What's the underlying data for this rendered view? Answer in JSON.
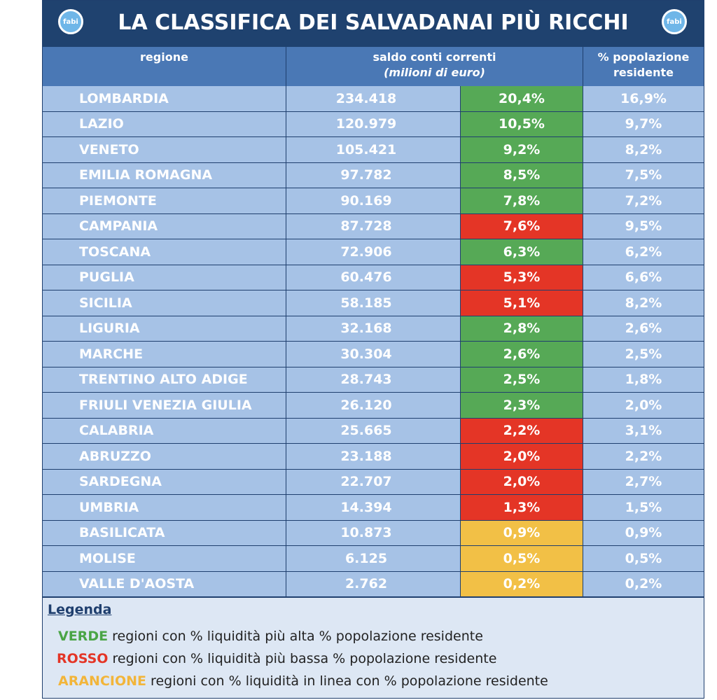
{
  "header": {
    "title": "LA CLASSIFICA DEI SALVADANAI PIÙ RICCHI",
    "logo_text": "fabi"
  },
  "table": {
    "columns": {
      "region": "regione",
      "saldo": "saldo conti correnti",
      "saldo_unit": "(milioni di euro)",
      "pop": "% popolazione residente"
    },
    "rows": [
      {
        "region": "LOMBARDIA",
        "saldo": "234.418",
        "share": "20,4%",
        "pop": "16,9%",
        "color": "#56a956"
      },
      {
        "region": "LAZIO",
        "saldo": "120.979",
        "share": "10,5%",
        "pop": "9,7%",
        "color": "#56a956"
      },
      {
        "region": "VENETO",
        "saldo": "105.421",
        "share": "9,2%",
        "pop": "8,2%",
        "color": "#56a956"
      },
      {
        "region": "EMILIA ROMAGNA",
        "saldo": "97.782",
        "share": "8,5%",
        "pop": "7,5%",
        "color": "#56a956"
      },
      {
        "region": "PIEMONTE",
        "saldo": "90.169",
        "share": "7,8%",
        "pop": "7,2%",
        "color": "#56a956"
      },
      {
        "region": "CAMPANIA",
        "saldo": "87.728",
        "share": "7,6%",
        "pop": "9,5%",
        "color": "#e43526"
      },
      {
        "region": "TOSCANA",
        "saldo": "72.906",
        "share": "6,3%",
        "pop": "6,2%",
        "color": "#56a956"
      },
      {
        "region": "PUGLIA",
        "saldo": "60.476",
        "share": "5,3%",
        "pop": "6,6%",
        "color": "#e43526"
      },
      {
        "region": "SICILIA",
        "saldo": "58.185",
        "share": "5,1%",
        "pop": "8,2%",
        "color": "#e43526"
      },
      {
        "region": "LIGURIA",
        "saldo": "32.168",
        "share": "2,8%",
        "pop": "2,6%",
        "color": "#56a956"
      },
      {
        "region": "MARCHE",
        "saldo": "30.304",
        "share": "2,6%",
        "pop": "2,5%",
        "color": "#56a956"
      },
      {
        "region": "TRENTINO ALTO ADIGE",
        "saldo": "28.743",
        "share": "2,5%",
        "pop": "1,8%",
        "color": "#56a956"
      },
      {
        "region": "FRIULI VENEZIA GIULIA",
        "saldo": "26.120",
        "share": "2,3%",
        "pop": "2,0%",
        "color": "#56a956"
      },
      {
        "region": "CALABRIA",
        "saldo": "25.665",
        "share": "2,2%",
        "pop": "3,1%",
        "color": "#e43526"
      },
      {
        "region": "ABRUZZO",
        "saldo": "23.188",
        "share": "2,0%",
        "pop": "2,2%",
        "color": "#e43526"
      },
      {
        "region": "SARDEGNA",
        "saldo": "22.707",
        "share": "2,0%",
        "pop": "2,7%",
        "color": "#e43526"
      },
      {
        "region": "UMBRIA",
        "saldo": "14.394",
        "share": "1,3%",
        "pop": "1,5%",
        "color": "#e43526"
      },
      {
        "region": "BASILICATA",
        "saldo": "10.873",
        "share": "0,9%",
        "pop": "0,9%",
        "color": "#f2c046"
      },
      {
        "region": "MOLISE",
        "saldo": "6.125",
        "share": "0,5%",
        "pop": "0,5%",
        "color": "#f2c046"
      },
      {
        "region": "VALLE D'AOSTA",
        "saldo": "2.762",
        "share": "0,2%",
        "pop": "0,2%",
        "color": "#f2c046"
      }
    ]
  },
  "legend": {
    "title": "Legenda",
    "items": [
      {
        "key": "VERDE",
        "text": "regioni con % liquidità più alta % popolazione residente",
        "color": "#4aa546"
      },
      {
        "key": "ROSSO",
        "text": "regioni con % liquidità più bassa % popolazione residente",
        "color": "#e43526"
      },
      {
        "key": "ARANCIONE",
        "text": "regioni con % liquidità in linea con % popolazione residente",
        "color": "#f2b53a"
      }
    ]
  }
}
